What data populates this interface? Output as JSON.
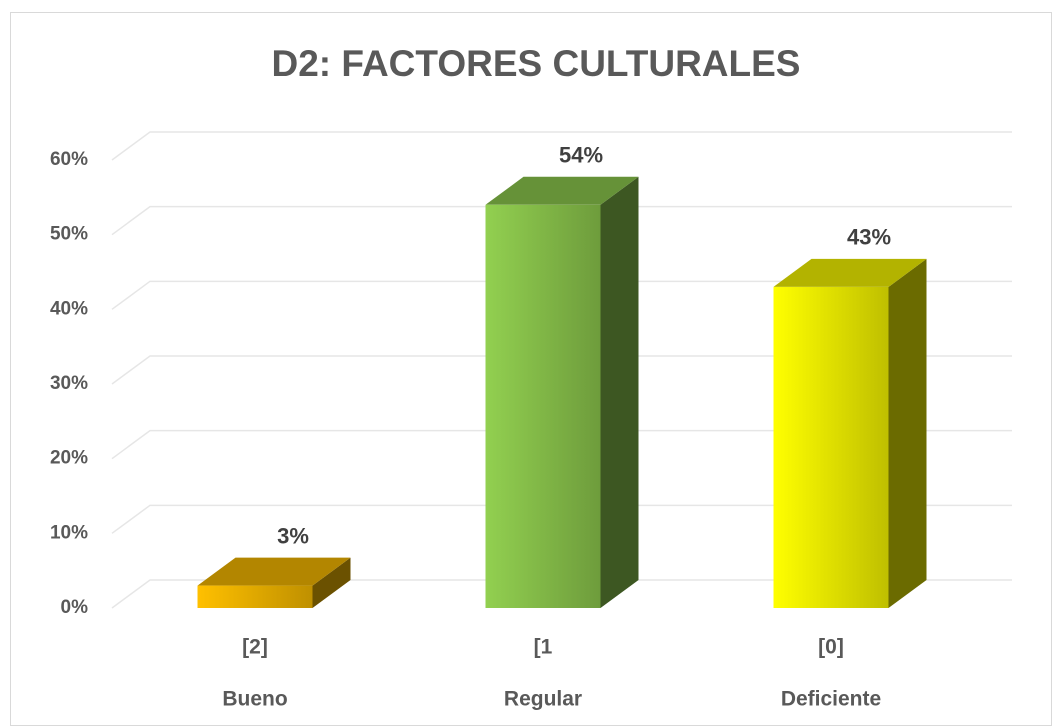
{
  "chart_data": {
    "type": "bar3d",
    "title": "D2: FACTORES CULTURALES",
    "categories": [
      "[2]",
      "[1",
      "[0]"
    ],
    "subcategories": [
      "Bueno",
      "Regular",
      "Deficiente"
    ],
    "values": [
      3,
      54,
      43
    ],
    "value_labels": [
      "3%",
      "54%",
      "43%"
    ],
    "colors": [
      "#ffc000",
      "#92d050",
      "#ffff00"
    ],
    "ylim": [
      0,
      60
    ],
    "yticks": [
      {
        "value": 0,
        "label": "0%"
      },
      {
        "value": 10,
        "label": "10%"
      },
      {
        "value": 20,
        "label": "20%"
      },
      {
        "value": 30,
        "label": "30%"
      },
      {
        "value": 40,
        "label": "40%"
      },
      {
        "value": 50,
        "label": "50%"
      },
      {
        "value": 60,
        "label": "60%"
      }
    ],
    "grid": true
  }
}
